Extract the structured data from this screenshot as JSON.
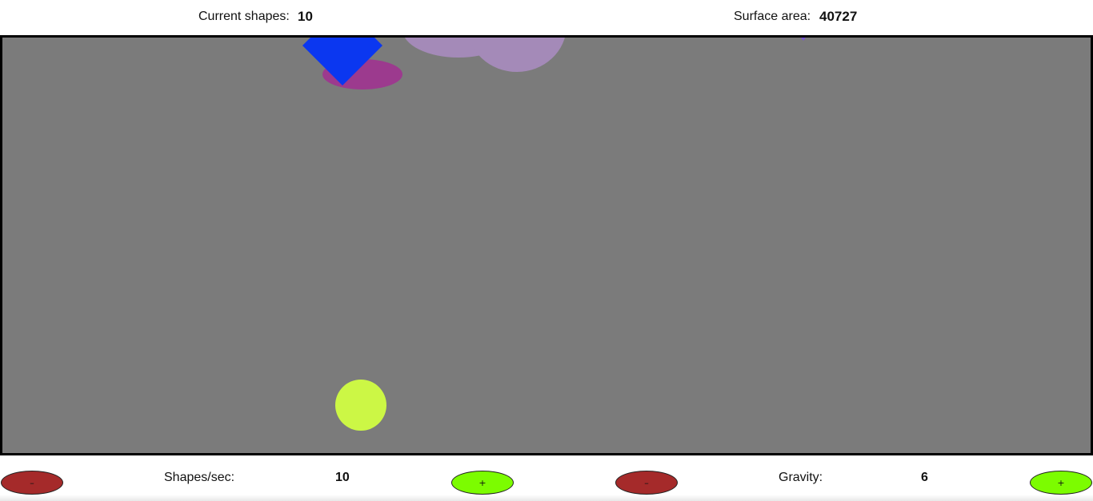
{
  "header": {
    "current_shapes_label": "Current shapes:",
    "current_shapes_value": "10",
    "surface_area_label": "Surface area:",
    "surface_area_value": "40727"
  },
  "controls": {
    "shapes_per_sec": {
      "decrease_label": "–",
      "label": "Shapes/sec:",
      "value": "10",
      "increase_label": "+"
    },
    "gravity": {
      "decrease_label": "–",
      "label": "Gravity:",
      "value": "6",
      "increase_label": "+"
    }
  },
  "canvas": {
    "background_color": "#7b7b7b",
    "border_color": "#000000"
  },
  "shapes": [
    {
      "kind": "cloud",
      "color": "#a48ab8"
    },
    {
      "kind": "ellipse",
      "color": "#9c3a8e"
    },
    {
      "kind": "diamond",
      "color": "#0b37f0"
    },
    {
      "kind": "bar",
      "color": "#5b2ee6"
    },
    {
      "kind": "small-triangle",
      "color": "#7a55d6"
    },
    {
      "kind": "circle",
      "color": "#ccf745"
    }
  ]
}
